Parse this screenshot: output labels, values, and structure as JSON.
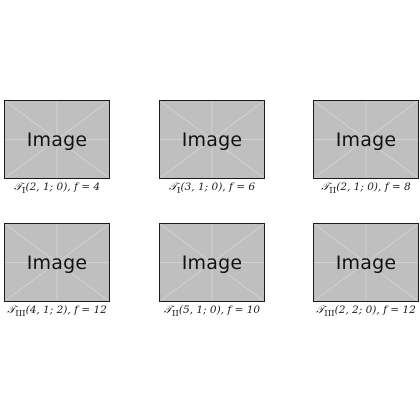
{
  "figures": [
    {
      "placeholder_text": "Image",
      "caption": {
        "family": "𝒯",
        "sub": "I",
        "args": "(2, 1; 0), ",
        "f_label": "f = 4"
      }
    },
    {
      "placeholder_text": "Image",
      "caption": {
        "family": "𝒯",
        "sub": "I",
        "args": "(3, 1; 0), ",
        "f_label": "f = 6"
      }
    },
    {
      "placeholder_text": "Image",
      "caption": {
        "family": "𝒯",
        "sub": "II",
        "args": "(2, 1; 0), ",
        "f_label": "f = 8"
      }
    },
    {
      "placeholder_text": "Image",
      "caption": {
        "family": "𝒯",
        "sub": "III",
        "args": "(4, 1; 2), ",
        "f_label": "f = 12"
      }
    },
    {
      "placeholder_text": "Image",
      "caption": {
        "family": "𝒯",
        "sub": "II",
        "args": "(5, 1; 0), ",
        "f_label": "f = 10"
      }
    },
    {
      "placeholder_text": "Image",
      "caption": {
        "family": "𝒯",
        "sub": "III",
        "args": "(2, 2; 0), ",
        "f_label": "f = 12"
      }
    }
  ],
  "colors": {
    "placeholder_fill": "#bfbfbf",
    "placeholder_lines": "#d9d9d9",
    "border": "#1a1a1a"
  }
}
